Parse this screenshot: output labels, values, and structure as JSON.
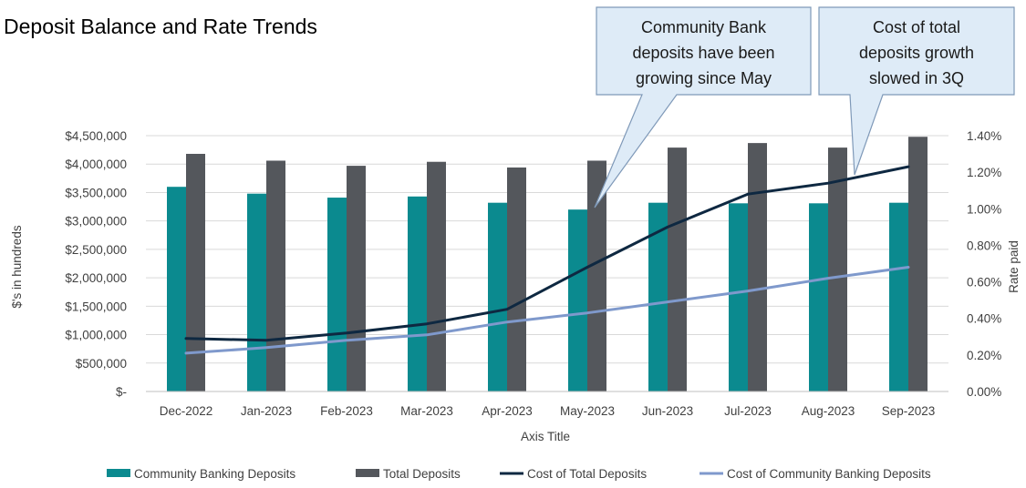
{
  "chart_data": {
    "type": "bar",
    "title": "Deposit Balance and Rate Trends",
    "xlabel": "Axis Title",
    "ylabel": "$'s in hundreds",
    "y2label": "Rate paid",
    "categories": [
      "Dec-2022",
      "Jan-2023",
      "Feb-2023",
      "Mar-2023",
      "Apr-2023",
      "May-2023",
      "Jun-2023",
      "Jul-2023",
      "Aug-2023",
      "Sep-2023"
    ],
    "ylim": [
      0,
      4500000
    ],
    "y_ticks": [
      0,
      500000,
      1000000,
      1500000,
      2000000,
      2500000,
      3000000,
      3500000,
      4000000,
      4500000
    ],
    "y_tick_labels": [
      "$-",
      "$500,000",
      "$1,000,000",
      "$1,500,000",
      "$2,000,000",
      "$2,500,000",
      "$3,000,000",
      "$3,500,000",
      "$4,000,000",
      "$4,500,000"
    ],
    "y2lim": [
      0,
      1.4
    ],
    "y2_ticks": [
      0,
      0.2,
      0.4,
      0.6,
      0.8,
      1.0,
      1.2,
      1.4
    ],
    "y2_tick_labels": [
      "0.00%",
      "0.20%",
      "0.40%",
      "0.60%",
      "0.80%",
      "1.00%",
      "1.20%",
      "1.40%"
    ],
    "grid": true,
    "legend_position": "bottom",
    "series": [
      {
        "name": "Community Banking Deposits",
        "kind": "bar",
        "axis": "left",
        "color": "#0B8A8F",
        "values": [
          3600000,
          3480000,
          3410000,
          3430000,
          3320000,
          3200000,
          3320000,
          3310000,
          3310000,
          3320000
        ]
      },
      {
        "name": "Total Deposits",
        "kind": "bar",
        "axis": "left",
        "color": "#54575C",
        "values": [
          4180000,
          4060000,
          3970000,
          4040000,
          3940000,
          4060000,
          4290000,
          4370000,
          4290000,
          4480000
        ]
      },
      {
        "name": "Cost of Total Deposits",
        "kind": "line",
        "axis": "right",
        "color": "#0E2841",
        "values": [
          0.29,
          0.28,
          0.32,
          0.37,
          0.45,
          0.68,
          0.9,
          1.08,
          1.14,
          1.23
        ]
      },
      {
        "name": "Cost of Community Banking Deposits",
        "kind": "line",
        "axis": "right",
        "color": "#7F99CC",
        "values": [
          0.21,
          0.24,
          0.28,
          0.31,
          0.38,
          0.43,
          0.49,
          0.55,
          0.62,
          0.68
        ]
      }
    ],
    "annotations": [
      {
        "lines": [
          "Community Bank",
          "deposits have been",
          "growing since May"
        ],
        "points_to": "May-2023"
      },
      {
        "lines": [
          "Cost of total",
          "deposits growth",
          "slowed in 3Q"
        ],
        "points_to": "Sep-2023"
      }
    ]
  }
}
